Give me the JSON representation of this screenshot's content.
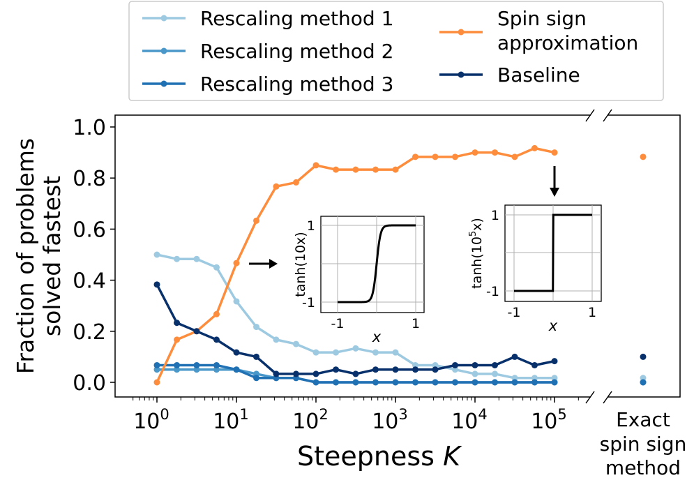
{
  "chart_data": {
    "type": "line",
    "xlabel": "Steepness",
    "xlabel_var": "K",
    "ylabel_line1": "Fraction of problems",
    "ylabel_line2": "solved fastest",
    "x_scale": "log",
    "xlim": [
      0.5,
      200000
    ],
    "ylim": [
      -0.04,
      1.05
    ],
    "y_ticks": [
      "0.0",
      "0.2",
      "0.4",
      "0.6",
      "0.8",
      "1.0"
    ],
    "x_tick_base": "10",
    "x_tick_exponents": [
      "0",
      "1",
      "2",
      "3",
      "4",
      "5"
    ],
    "grid": false,
    "legend_position": "top",
    "x": [
      1,
      1.78,
      3.16,
      5.62,
      10,
      17.8,
      31.6,
      56.2,
      100,
      178,
      316,
      562,
      1000,
      1778,
      3162,
      5623,
      10000,
      17783,
      31623,
      56234,
      100000
    ],
    "series": [
      {
        "name": "Rescaling method 1",
        "color": "#9ecae1",
        "values": [
          0.5,
          0.483,
          0.483,
          0.45,
          0.317,
          0.217,
          0.167,
          0.15,
          0.117,
          0.117,
          0.133,
          0.117,
          0.117,
          0.067,
          0.067,
          0.05,
          0.033,
          0.033,
          0.017,
          0.017,
          0.017
        ],
        "exact": 0.017
      },
      {
        "name": "Rescaling method 2",
        "color": "#4a98c9",
        "values": [
          0.05,
          0.05,
          0.05,
          0.05,
          0.05,
          0.033,
          0.017,
          0.017,
          0.0,
          0.0,
          0.0,
          0.0,
          0.0,
          0.0,
          0.0,
          0.0,
          0.0,
          0.0,
          0.0,
          0.0,
          0.0
        ],
        "exact": 0.0
      },
      {
        "name": "Rescaling method 3",
        "color": "#2070b4",
        "values": [
          0.067,
          0.067,
          0.067,
          0.067,
          0.05,
          0.017,
          0.017,
          0.017,
          0.0,
          0.0,
          0.0,
          0.0,
          0.0,
          0.0,
          0.0,
          0.0,
          0.0,
          0.0,
          0.0,
          0.0,
          0.0
        ],
        "exact": 0.0
      },
      {
        "name_line1": "Spin sign",
        "name_line2": "approximation",
        "color": "#fd8d3c",
        "values": [
          0.0,
          0.167,
          0.2,
          0.267,
          0.467,
          0.633,
          0.767,
          0.783,
          0.85,
          0.833,
          0.833,
          0.833,
          0.833,
          0.883,
          0.883,
          0.883,
          0.9,
          0.9,
          0.883,
          0.917,
          0.9
        ],
        "exact": 0.883
      },
      {
        "name": "Baseline",
        "color": "#08306b",
        "values": [
          0.383,
          0.233,
          0.2,
          0.167,
          0.117,
          0.1,
          0.033,
          0.033,
          0.033,
          0.05,
          0.033,
          0.05,
          0.05,
          0.05,
          0.05,
          0.067,
          0.067,
          0.067,
          0.1,
          0.067,
          0.083
        ],
        "exact": 0.1
      }
    ],
    "exact_label": [
      "Exact",
      "spin sign",
      "method"
    ],
    "insets": [
      {
        "steepness": 10,
        "ylabel": "tanh(10x)",
        "xlabel": "x",
        "xticks": [
          "-1",
          "1"
        ],
        "yticks": [
          "-1",
          "1"
        ]
      },
      {
        "steepness": 100000,
        "ylabel_prefix": "tanh(10",
        "ylabel_sup": "5",
        "ylabel_suffix": "x)",
        "xlabel": "x",
        "xticks": [
          "-1",
          "1"
        ],
        "yticks": [
          "-1",
          "1"
        ]
      }
    ]
  }
}
